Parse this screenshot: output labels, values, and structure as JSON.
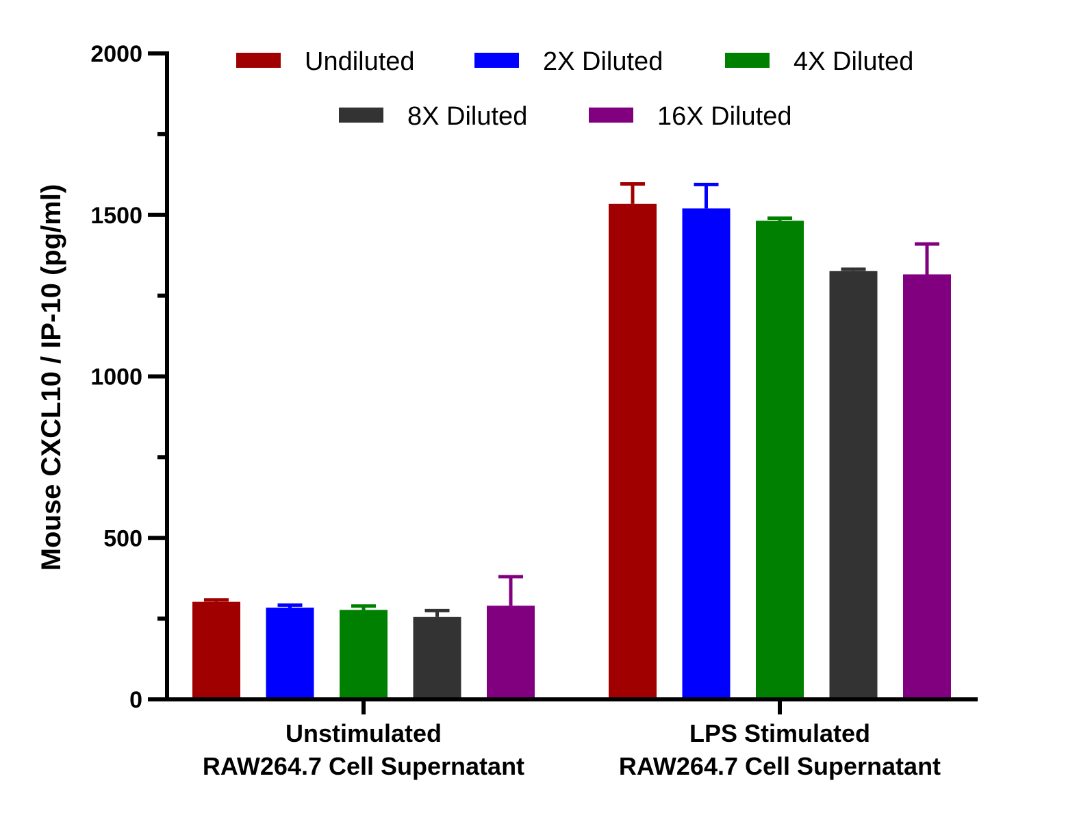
{
  "chart_data": {
    "type": "bar",
    "ylabel": "Mouse CXCL10 / IP-10 (pg/ml)",
    "xlabel": "",
    "ylim": [
      0,
      2000
    ],
    "y_ticks": [
      0,
      500,
      1000,
      1500,
      2000
    ],
    "y_minor_tick_step": 250,
    "grid": false,
    "legend_position": "top",
    "categories": [
      [
        "Unstimulated",
        "RAW264.7 Cell Supernatant"
      ],
      [
        "LPS Stimulated",
        "RAW264.7 Cell Supernatant"
      ]
    ],
    "series": [
      {
        "name": "Undiluted",
        "color": "#a00000",
        "values": [
          302,
          1534
        ],
        "errors": [
          6,
          62
        ]
      },
      {
        "name": "2X Diluted",
        "color": "#0000ff",
        "values": [
          284,
          1520
        ],
        "errors": [
          8,
          74
        ]
      },
      {
        "name": "4X Diluted",
        "color": "#008000",
        "values": [
          277,
          1482
        ],
        "errors": [
          12,
          8
        ]
      },
      {
        "name": "8X Diluted",
        "color": "#333333",
        "values": [
          255,
          1326
        ],
        "errors": [
          20,
          6
        ]
      },
      {
        "name": "16X Diluted",
        "color": "#800080",
        "values": [
          290,
          1316
        ],
        "errors": [
          90,
          94
        ]
      }
    ]
  }
}
